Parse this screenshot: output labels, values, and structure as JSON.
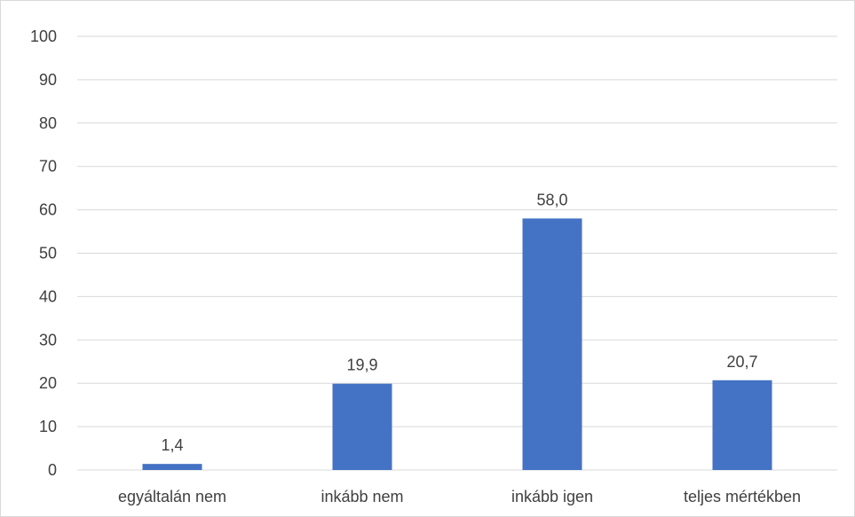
{
  "chart_data": {
    "type": "bar",
    "title": "",
    "xlabel": "",
    "ylabel": "",
    "categories": [
      "egyáltalán nem",
      "inkább nem",
      "inkább igen",
      "teljes mértékben"
    ],
    "values": [
      1.4,
      19.9,
      58.0,
      20.7
    ],
    "data_labels": [
      "1,4",
      "19,9",
      "58,0",
      "20,7"
    ],
    "ylim": [
      0,
      100
    ],
    "yticks": [
      0,
      10,
      20,
      30,
      40,
      50,
      60,
      70,
      80,
      90,
      100
    ],
    "grid": true,
    "legend": "none",
    "bar_color": "#4472c4",
    "grid_color": "#d9d9d9"
  }
}
